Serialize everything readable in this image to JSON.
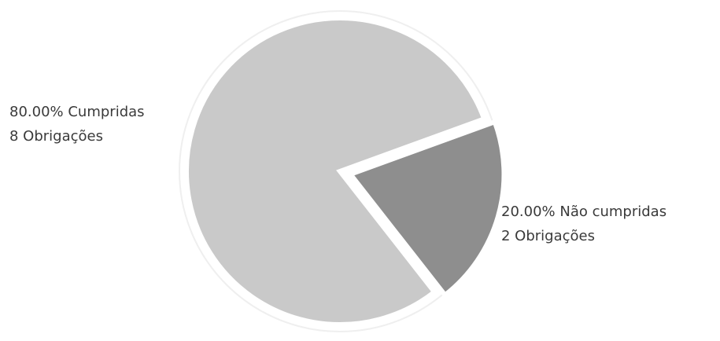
{
  "chart_data": {
    "type": "pie",
    "title": "",
    "legend": "none",
    "slices": [
      {
        "label": "Cumpridas",
        "percent": 80.0,
        "value": 8,
        "percent_text": "80.00% Cumpridas",
        "count_text": "8 Obrigações",
        "color": "#c9c9c9"
      },
      {
        "label": "Não cumpridas",
        "percent": 20.0,
        "value": 2,
        "percent_text": "20.00% Não cumpridas",
        "count_text": "2 Obrigações",
        "color": "#8e8e8e"
      }
    ]
  }
}
